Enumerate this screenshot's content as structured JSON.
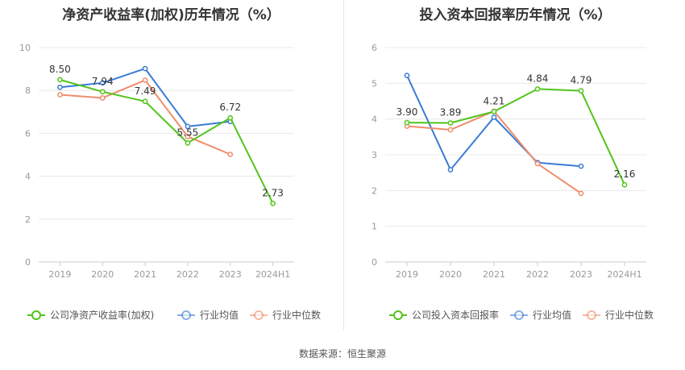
{
  "source_label": "数据来源：恒生聚源",
  "chart_data": [
    {
      "type": "line",
      "title": "净资产收益率(加权)历年情况（%）",
      "categories": [
        "2019",
        "2020",
        "2021",
        "2022",
        "2023",
        "2024H1"
      ],
      "ylim": [
        0,
        10
      ],
      "yticks": [
        0,
        2,
        4,
        6,
        8,
        10
      ],
      "grid": true,
      "legend_position": "bottom",
      "series": [
        {
          "name": "公司净资产收益率(加权)",
          "color": "#52c41a",
          "values": [
            8.5,
            7.94,
            7.49,
            5.55,
            6.72,
            2.73
          ],
          "show_labels": true
        },
        {
          "name": "行业均值",
          "color": "#3a7bd5",
          "values": [
            8.15,
            8.35,
            9.02,
            6.32,
            6.55,
            null
          ],
          "show_labels": false
        },
        {
          "name": "行业中位数",
          "color": "#f08c6c",
          "values": [
            7.8,
            7.65,
            8.48,
            5.85,
            5.02,
            null
          ],
          "show_labels": false
        }
      ],
      "data_labels": [
        "8.50",
        "7.94",
        "7.49",
        "5.55",
        "6.72",
        "2.73"
      ]
    },
    {
      "type": "line",
      "title": "投入资本回报率历年情况（%）",
      "categories": [
        "2019",
        "2020",
        "2021",
        "2022",
        "2023",
        "2024H1"
      ],
      "ylim": [
        0,
        6
      ],
      "yticks": [
        0,
        1,
        2,
        3,
        4,
        5,
        6
      ],
      "grid": true,
      "legend_position": "bottom",
      "series": [
        {
          "name": "公司投入资本回报率",
          "color": "#52c41a",
          "values": [
            3.9,
            3.89,
            4.21,
            4.84,
            4.79,
            2.16
          ],
          "show_labels": true
        },
        {
          "name": "行业均值",
          "color": "#3a7bd5",
          "values": [
            5.22,
            2.58,
            4.05,
            2.78,
            2.68,
            null
          ],
          "show_labels": false
        },
        {
          "name": "行业中位数",
          "color": "#f08c6c",
          "values": [
            3.8,
            3.7,
            4.22,
            2.75,
            1.92,
            null
          ],
          "show_labels": false
        }
      ],
      "data_labels": [
        "3.90",
        "3.89",
        "4.21",
        "4.84",
        "4.79",
        "2.16"
      ]
    }
  ]
}
